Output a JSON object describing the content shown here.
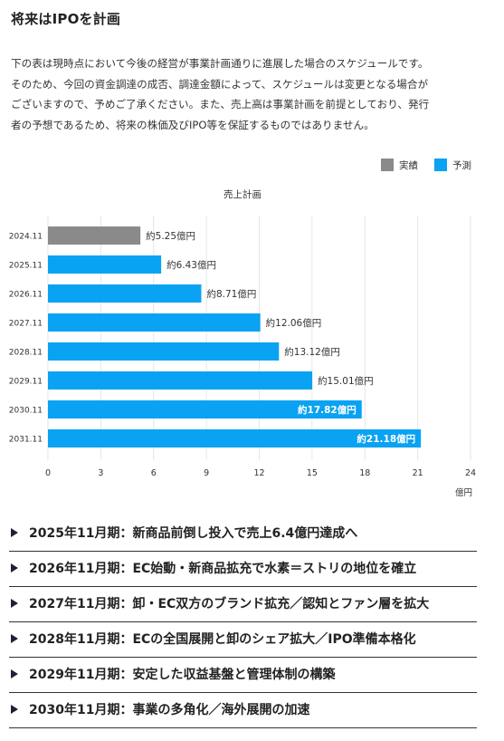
{
  "page": {
    "title": "将来はIPOを計画",
    "intro_lines": [
      "下の表は現時点において今後の経営が事業計画通りに進展した場合のスケジュールです。",
      "そのため、今回の資金調達の成否、調達金額によって、スケジュールは変更となる場合が",
      "ございますので、予めご了承ください。また、売上高は事業計画を前提としており、発行",
      "者の予想であるため、将来の株価及びIPO等を保証するものではありません。"
    ]
  },
  "colors": {
    "actual": "#8a8a8a",
    "forecast": "#0aa2f2",
    "grid": "#e6e6e6"
  },
  "chart_data": {
    "type": "bar",
    "orientation": "horizontal",
    "title": "売上計画",
    "categories": [
      "2024.11",
      "2025.11",
      "2026.11",
      "2027.11",
      "2028.11",
      "2029.11",
      "2030.11",
      "2031.11"
    ],
    "values": [
      5.25,
      6.43,
      8.71,
      12.06,
      13.12,
      15.01,
      17.82,
      21.18
    ],
    "value_labels": [
      "約5.25億円",
      "約6.43億円",
      "約8.71億円",
      "約12.06億円",
      "約13.12億円",
      "約15.01億円",
      "約17.82億円",
      "約21.18億円"
    ],
    "series_type": [
      "実績",
      "予測",
      "予測",
      "予測",
      "予測",
      "予測",
      "予測",
      "予測"
    ],
    "legend": [
      {
        "name": "実績",
        "color": "#8a8a8a"
      },
      {
        "name": "予測",
        "color": "#0aa2f2"
      }
    ],
    "legend_position": "top-right",
    "xlim": [
      0,
      24
    ],
    "xticks": [
      0,
      3,
      6,
      9,
      12,
      15,
      18,
      21,
      24
    ],
    "xlabel": "億円",
    "grid": true
  },
  "milestones": [
    "2025年11月期：新商品前倒し投入で売上6.4億円達成へ",
    "2026年11月期：EC始動・新商品拡充で水素＝ストリの地位を確立",
    "2027年11月期：卸・EC双方のブランド拡充／認知とファン層を拡大",
    "2028年11月期：ECの全国展開と卸のシェア拡大／IPO準備本格化",
    "2029年11月期：安定した収益基盤と管理体制の構築",
    "2030年11月期：事業の多角化／海外展開の加速"
  ]
}
